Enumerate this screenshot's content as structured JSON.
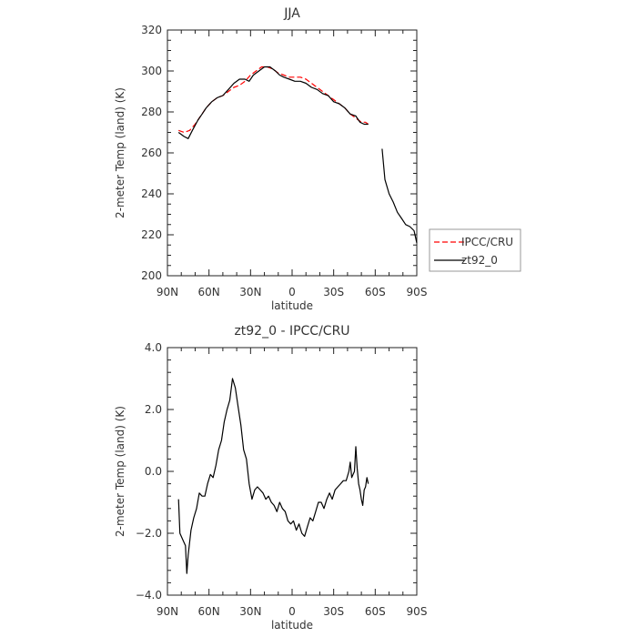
{
  "chart_data": [
    {
      "type": "line",
      "title": "JJA",
      "xlabel": "latitude",
      "ylabel": "2-meter Temp (land) (K)",
      "xlim": [
        90,
        -90
      ],
      "ylim": [
        200,
        320
      ],
      "xticks": [
        90,
        60,
        30,
        0,
        -30,
        -60,
        -90
      ],
      "xtick_labels": [
        "90N",
        "60N",
        "30N",
        "0",
        "30S",
        "60S",
        "90S"
      ],
      "yticks": [
        200,
        220,
        240,
        260,
        280,
        300,
        320
      ],
      "ytick_labels": [
        "200",
        "220",
        "240",
        "260",
        "280",
        "300",
        "320"
      ],
      "legend_position": "outside-right",
      "series": [
        {
          "name": "IPCC/CRU",
          "color": "#ff0000",
          "dash": "dashed",
          "segments": [
            [
              [
                82,
                271
              ],
              [
                78,
                270
              ],
              [
                74,
                271
              ],
              [
                70,
                274
              ],
              [
                66,
                278
              ],
              [
                62,
                282
              ],
              [
                58,
                285
              ],
              [
                54,
                287
              ],
              [
                50,
                288
              ],
              [
                46,
                290
              ],
              [
                42,
                292
              ],
              [
                38,
                293
              ],
              [
                34,
                295
              ],
              [
                30,
                298
              ],
              [
                26,
                300
              ],
              [
                22,
                302
              ],
              [
                18,
                302
              ],
              [
                14,
                301
              ],
              [
                10,
                299
              ],
              [
                6,
                298
              ],
              [
                2,
                297
              ],
              [
                -2,
                297
              ],
              [
                -6,
                297
              ],
              [
                -10,
                296
              ],
              [
                -14,
                294
              ],
              [
                -18,
                292
              ],
              [
                -22,
                290
              ],
              [
                -26,
                288
              ],
              [
                -30,
                286
              ],
              [
                -34,
                284
              ],
              [
                -38,
                282
              ],
              [
                -42,
                279
              ],
              [
                -46,
                277
              ],
              [
                -50,
                275
              ],
              [
                -53,
                275
              ],
              [
                -55,
                274
              ]
            ]
          ]
        },
        {
          "name": "zt92_0",
          "color": "#000000",
          "dash": "solid",
          "segments": [
            [
              [
                82,
                270
              ],
              [
                78,
                268
              ],
              [
                75,
                267
              ],
              [
                72,
                271
              ],
              [
                68,
                276
              ],
              [
                65,
                279
              ],
              [
                62,
                282
              ],
              [
                58,
                285
              ],
              [
                54,
                287
              ],
              [
                50,
                288
              ],
              [
                46,
                291
              ],
              [
                42,
                294
              ],
              [
                38,
                296
              ],
              [
                34,
                296
              ],
              [
                31,
                295
              ],
              [
                28,
                298
              ],
              [
                24,
                300
              ],
              [
                20,
                302
              ],
              [
                16,
                302
              ],
              [
                12,
                300
              ],
              [
                9,
                298
              ],
              [
                6,
                297
              ],
              [
                2,
                296
              ],
              [
                -2,
                295
              ],
              [
                -6,
                295
              ],
              [
                -10,
                294
              ],
              [
                -14,
                292
              ],
              [
                -18,
                291
              ],
              [
                -22,
                289
              ],
              [
                -26,
                288
              ],
              [
                -30,
                285
              ],
              [
                -34,
                284
              ],
              [
                -38,
                282
              ],
              [
                -42,
                279
              ],
              [
                -46,
                278
              ],
              [
                -49,
                275
              ],
              [
                -52,
                274
              ],
              [
                -55,
                274
              ]
            ],
            [
              [
                -65,
                262
              ],
              [
                -67,
                247
              ],
              [
                -70,
                240
              ],
              [
                -73,
                236
              ],
              [
                -76,
                231
              ],
              [
                -79,
                228
              ],
              [
                -82,
                225
              ],
              [
                -85,
                224
              ],
              [
                -88,
                222
              ],
              [
                -90,
                216
              ]
            ]
          ]
        }
      ]
    },
    {
      "type": "line",
      "title": "zt92_0 - IPCC/CRU",
      "xlabel": "latitude",
      "ylabel": "2-meter Temp (land) (K)",
      "xlim": [
        90,
        -90
      ],
      "ylim": [
        -4,
        4
      ],
      "xticks": [
        90,
        60,
        30,
        0,
        -30,
        -60,
        -90
      ],
      "xtick_labels": [
        "90N",
        "60N",
        "30N",
        "0",
        "30S",
        "60S",
        "90S"
      ],
      "yticks": [
        -4,
        -2,
        0,
        2,
        4
      ],
      "ytick_labels": [
        "−4.0",
        "−2.0",
        "0.0",
        "2.0",
        "4.0"
      ],
      "series": [
        {
          "name": "",
          "color": "#000000",
          "dash": "solid",
          "segments": [
            [
              [
                82,
                -0.9
              ],
              [
                81,
                -2.0
              ],
              [
                79,
                -2.2
              ],
              [
                77,
                -2.4
              ],
              [
                76,
                -3.3
              ],
              [
                75,
                -2.7
              ],
              [
                73,
                -1.9
              ],
              [
                71,
                -1.5
              ],
              [
                69,
                -1.2
              ],
              [
                67,
                -0.7
              ],
              [
                65,
                -0.8
              ],
              [
                63,
                -0.8
              ],
              [
                61,
                -0.4
              ],
              [
                59,
                -0.1
              ],
              [
                57,
                -0.2
              ],
              [
                55,
                0.2
              ],
              [
                53,
                0.7
              ],
              [
                51,
                1.0
              ],
              [
                49,
                1.6
              ],
              [
                47,
                2.0
              ],
              [
                45,
                2.3
              ],
              [
                43,
                3.0
              ],
              [
                41,
                2.7
              ],
              [
                39,
                2.1
              ],
              [
                37,
                1.5
              ],
              [
                35,
                0.7
              ],
              [
                33,
                0.4
              ],
              [
                31,
                -0.4
              ],
              [
                29,
                -0.9
              ],
              [
                27,
                -0.6
              ],
              [
                25,
                -0.5
              ],
              [
                23,
                -0.6
              ],
              [
                21,
                -0.7
              ],
              [
                19,
                -0.9
              ],
              [
                17,
                -0.8
              ],
              [
                15,
                -1.0
              ],
              [
                13,
                -1.1
              ],
              [
                11,
                -1.3
              ],
              [
                9,
                -1.0
              ],
              [
                7,
                -1.2
              ],
              [
                5,
                -1.3
              ],
              [
                3,
                -1.6
              ],
              [
                1,
                -1.7
              ],
              [
                -1,
                -1.6
              ],
              [
                -3,
                -1.9
              ],
              [
                -5,
                -1.7
              ],
              [
                -7,
                -2.0
              ],
              [
                -9,
                -2.1
              ],
              [
                -11,
                -1.8
              ],
              [
                -13,
                -1.5
              ],
              [
                -15,
                -1.6
              ],
              [
                -17,
                -1.3
              ],
              [
                -19,
                -1.0
              ],
              [
                -21,
                -1.0
              ],
              [
                -23,
                -1.2
              ],
              [
                -25,
                -0.9
              ],
              [
                -27,
                -0.7
              ],
              [
                -29,
                -0.9
              ],
              [
                -31,
                -0.6
              ],
              [
                -33,
                -0.5
              ],
              [
                -35,
                -0.4
              ],
              [
                -37,
                -0.3
              ],
              [
                -39,
                -0.3
              ],
              [
                -41,
                0.0
              ],
              [
                -42,
                0.3
              ],
              [
                -43,
                -0.2
              ],
              [
                -45,
                0.0
              ],
              [
                -46,
                0.8
              ],
              [
                -47,
                0.1
              ],
              [
                -48,
                -0.4
              ],
              [
                -49,
                -0.6
              ],
              [
                -50,
                -0.9
              ],
              [
                -51,
                -1.1
              ],
              [
                -52,
                -0.6
              ],
              [
                -53,
                -0.5
              ],
              [
                -54,
                -0.2
              ],
              [
                -55,
                -0.4
              ]
            ]
          ]
        }
      ]
    }
  ]
}
